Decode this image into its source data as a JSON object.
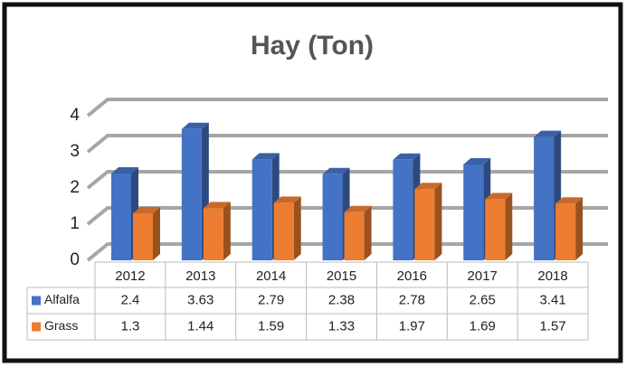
{
  "chart_data": {
    "type": "bar3d",
    "title": "Hay (Ton)",
    "categories": [
      "2012",
      "2013",
      "2014",
      "2015",
      "2016",
      "2017",
      "2018"
    ],
    "series": [
      {
        "name": "Alfalfa",
        "color": "#4472c4",
        "values": [
          2.4,
          3.63,
          2.79,
          2.38,
          2.78,
          2.65,
          3.41
        ]
      },
      {
        "name": "Grass",
        "color": "#ed7d31",
        "values": [
          1.3,
          1.44,
          1.59,
          1.33,
          1.97,
          1.69,
          1.57
        ]
      }
    ],
    "ylim": [
      0,
      4
    ],
    "yticks": [
      0,
      1,
      2,
      3,
      4
    ],
    "grid": true,
    "data_table": true
  }
}
